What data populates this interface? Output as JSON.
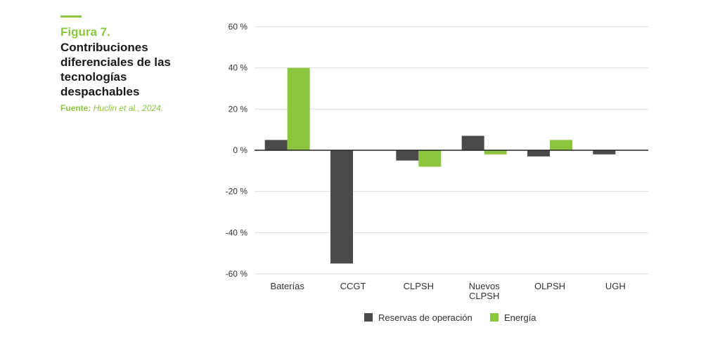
{
  "figure": {
    "number": "Figura 7.",
    "title": "Contribuciones diferenciales de las tecnologías despachables",
    "source_label": "Fuente:",
    "source_citation": "Huclin et al., 2024."
  },
  "colors": {
    "accent": "#8cc63f",
    "series_reserve": "#4a4a4a",
    "series_energy": "#8cc63f",
    "grid": "#dddddd",
    "zero_line": "#222222"
  },
  "chart_data": {
    "type": "bar",
    "categories": [
      "Baterías",
      "CCGT",
      "CLPSH",
      "Nuevos CLPSH",
      "OLPSH",
      "UGH"
    ],
    "category_lines": [
      [
        "Baterías"
      ],
      [
        "CCGT"
      ],
      [
        "CLPSH"
      ],
      [
        "Nuevos",
        "CLPSH"
      ],
      [
        "OLPSH"
      ],
      [
        "UGH"
      ]
    ],
    "series": [
      {
        "name": "Reservas de operación",
        "values": [
          5,
          -55,
          -5,
          7,
          -3,
          -2
        ]
      },
      {
        "name": "Energía",
        "values": [
          40,
          0,
          -8,
          -2,
          5,
          0
        ]
      }
    ],
    "ylim": [
      -60,
      60
    ],
    "yticks": [
      60,
      40,
      20,
      0,
      -20,
      -40,
      -60
    ],
    "ytick_labels": [
      "60 %",
      "40 %",
      "20 %",
      "0 %",
      "-20 %",
      "-40 %",
      "-60 %"
    ],
    "grid": true,
    "legend_position": "bottom"
  }
}
